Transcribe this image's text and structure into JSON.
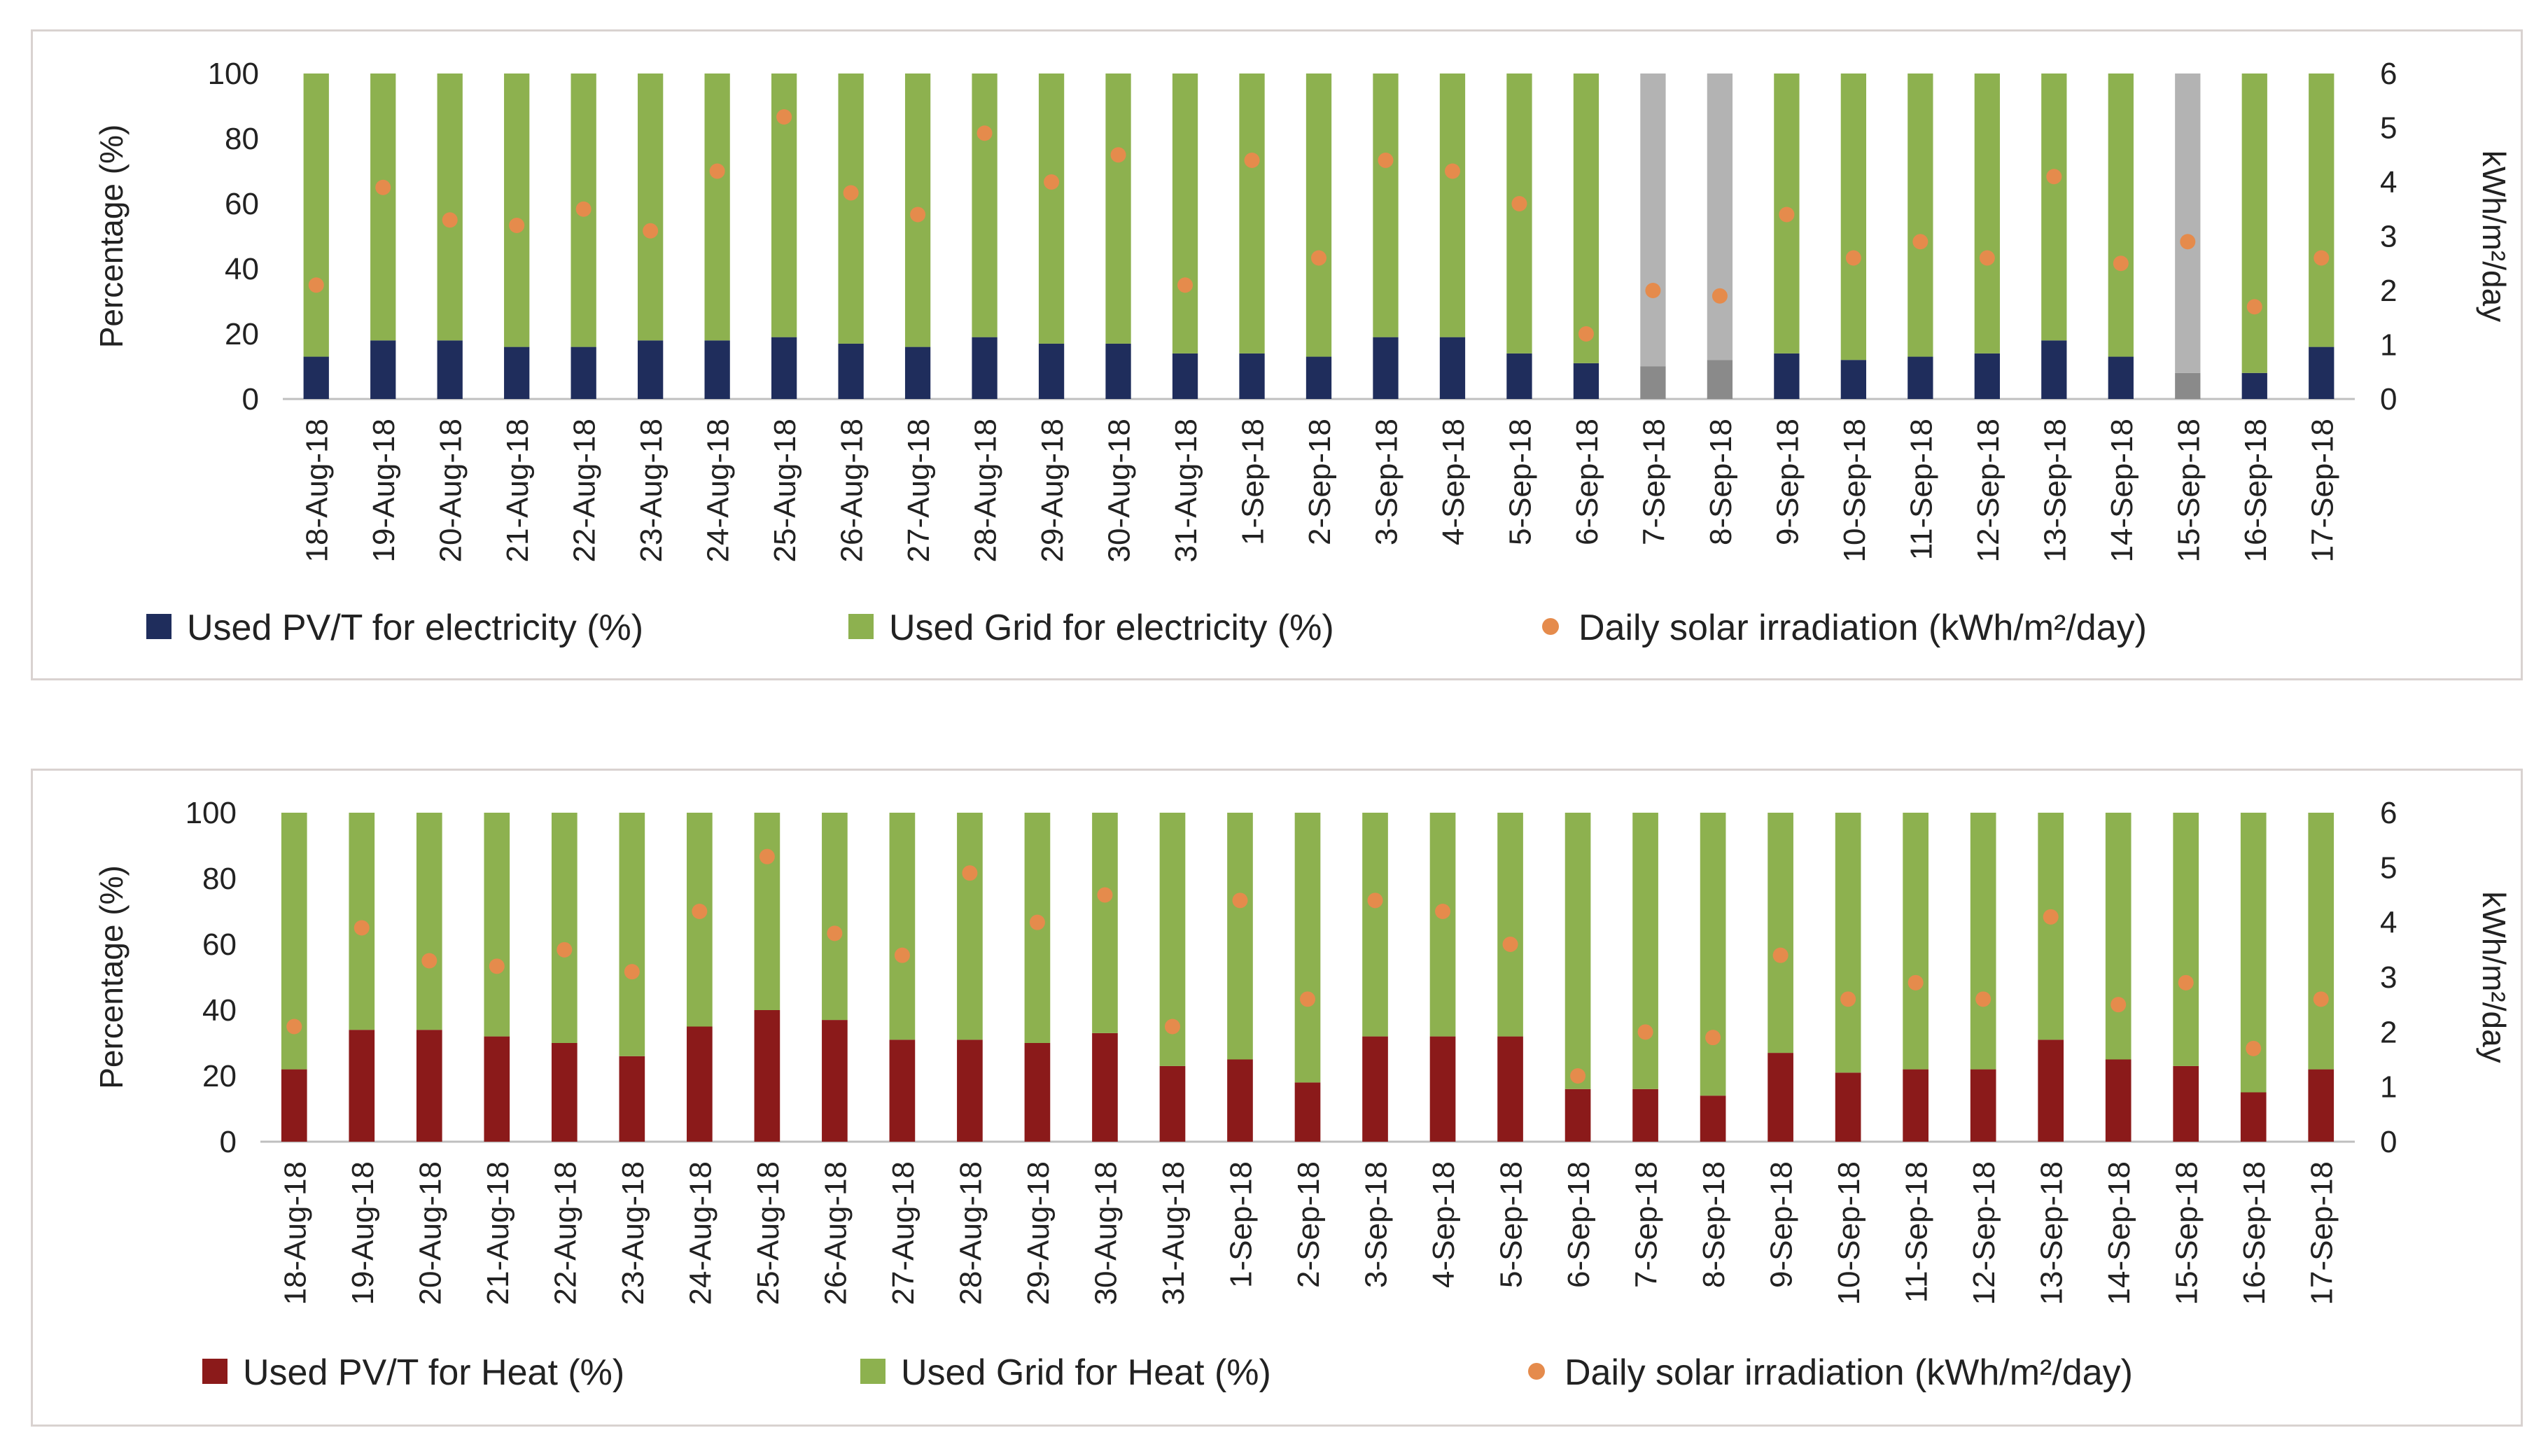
{
  "chart_data": [
    {
      "type": "bar",
      "stacked": true,
      "categories": [
        "18-Aug-18",
        "19-Aug-18",
        "20-Aug-18",
        "21-Aug-18",
        "22-Aug-18",
        "23-Aug-18",
        "24-Aug-18",
        "25-Aug-18",
        "26-Aug-18",
        "27-Aug-18",
        "28-Aug-18",
        "29-Aug-18",
        "30-Aug-18",
        "31-Aug-18",
        "1-Sep-18",
        "2-Sep-18",
        "3-Sep-18",
        "4-Sep-18",
        "5-Sep-18",
        "6-Sep-18",
        "7-Sep-18",
        "8-Sep-18",
        "9-Sep-18",
        "10-Sep-18",
        "11-Sep-18",
        "12-Sep-18",
        "13-Sep-18",
        "14-Sep-18",
        "15-Sep-18",
        "16-Sep-18",
        "17-Sep-18"
      ],
      "series": [
        {
          "name": "Used PV/T for electricity (%)",
          "color": "#1f2d5c",
          "values": [
            13,
            18,
            18,
            16,
            16,
            18,
            18,
            19,
            17,
            16,
            19,
            17,
            17,
            14,
            14,
            13,
            19,
            19,
            14,
            11,
            10,
            12,
            14,
            12,
            13,
            14,
            18,
            13,
            8,
            8,
            16
          ]
        },
        {
          "name": "Used Grid for electricity (%)",
          "color": "#8db14f",
          "values": [
            87,
            82,
            82,
            84,
            84,
            82,
            82,
            81,
            83,
            84,
            81,
            83,
            83,
            86,
            86,
            87,
            81,
            81,
            86,
            89,
            90,
            88,
            86,
            88,
            87,
            86,
            82,
            87,
            92,
            92,
            84
          ]
        },
        {
          "name": "Daily solar irradiation (kWh/m²/day)",
          "color": "#e58b4c",
          "axis": "right",
          "marker": "dot",
          "values": [
            2.1,
            3.9,
            3.3,
            3.2,
            3.5,
            3.1,
            4.2,
            5.2,
            3.8,
            3.4,
            4.9,
            4.0,
            4.5,
            2.1,
            4.4,
            2.6,
            4.4,
            4.2,
            3.6,
            1.2,
            2.0,
            1.9,
            3.4,
            2.6,
            2.9,
            2.6,
            4.1,
            2.5,
            2.9,
            1.7,
            2.6
          ]
        }
      ],
      "grey_categories": [
        "7-Sep-18",
        "8-Sep-18",
        "15-Sep-18"
      ],
      "grey_colors": {
        "top": "#b3b3b3",
        "bottom": "#8a8a8a"
      },
      "ylabel": "Percentage (%)",
      "y2label": "kWh/m²/day",
      "ylim": [
        0,
        100
      ],
      "y2lim": [
        0,
        6
      ],
      "yticks": [
        "0",
        "20",
        "40",
        "60",
        "80",
        "100"
      ],
      "y2ticks": [
        "0",
        "1",
        "2",
        "3",
        "4",
        "5",
        "6"
      ],
      "legend_position": "bottom",
      "legend": [
        {
          "label": "Used PV/T for electricity (%)"
        },
        {
          "label": "Used Grid for electricity (%)"
        },
        {
          "label": "Daily solar irradiation (kWh/m²/day)"
        }
      ]
    },
    {
      "type": "bar",
      "stacked": true,
      "categories": [
        "18-Aug-18",
        "19-Aug-18",
        "20-Aug-18",
        "21-Aug-18",
        "22-Aug-18",
        "23-Aug-18",
        "24-Aug-18",
        "25-Aug-18",
        "26-Aug-18",
        "27-Aug-18",
        "28-Aug-18",
        "29-Aug-18",
        "30-Aug-18",
        "31-Aug-18",
        "1-Sep-18",
        "2-Sep-18",
        "3-Sep-18",
        "4-Sep-18",
        "5-Sep-18",
        "6-Sep-18",
        "7-Sep-18",
        "8-Sep-18",
        "9-Sep-18",
        "10-Sep-18",
        "11-Sep-18",
        "12-Sep-18",
        "13-Sep-18",
        "14-Sep-18",
        "15-Sep-18",
        "16-Sep-18",
        "17-Sep-18"
      ],
      "series": [
        {
          "name": "Used PV/T for Heat (%)",
          "color": "#8b1a1a",
          "values": [
            22,
            34,
            34,
            32,
            30,
            26,
            35,
            40,
            37,
            31,
            31,
            30,
            33,
            23,
            25,
            18,
            32,
            32,
            32,
            16,
            16,
            14,
            27,
            21,
            22,
            22,
            31,
            25,
            23,
            15,
            22
          ]
        },
        {
          "name": "Used Grid for Heat (%)",
          "color": "#8db14f",
          "values": [
            78,
            66,
            66,
            68,
            70,
            74,
            65,
            60,
            63,
            69,
            69,
            70,
            67,
            77,
            75,
            82,
            68,
            68,
            68,
            84,
            84,
            86,
            73,
            79,
            78,
            78,
            69,
            75,
            77,
            85,
            78
          ]
        },
        {
          "name": "Daily solar irradiation (kWh/m²/day)",
          "color": "#e58b4c",
          "axis": "right",
          "marker": "dot",
          "values": [
            2.1,
            3.9,
            3.3,
            3.2,
            3.5,
            3.1,
            4.2,
            5.2,
            3.8,
            3.4,
            4.9,
            4.0,
            4.5,
            2.1,
            4.4,
            2.6,
            4.4,
            4.2,
            3.6,
            1.2,
            2.0,
            1.9,
            3.4,
            2.6,
            2.9,
            2.6,
            4.1,
            2.5,
            2.9,
            1.7,
            2.6
          ]
        }
      ],
      "ylabel": "Percentage (%)",
      "y2label": "kWh/m²/day",
      "ylim": [
        0,
        100
      ],
      "y2lim": [
        0,
        6
      ],
      "yticks": [
        "0",
        "20",
        "40",
        "60",
        "80",
        "100"
      ],
      "y2ticks": [
        "0",
        "1",
        "2",
        "3",
        "4",
        "5",
        "6"
      ],
      "legend_position": "bottom",
      "legend": [
        {
          "label": "Used PV/T for Heat (%)"
        },
        {
          "label": "Used Grid for Heat (%)"
        },
        {
          "label": "Daily solar irradiation (kWh/m²/day)"
        }
      ]
    }
  ]
}
